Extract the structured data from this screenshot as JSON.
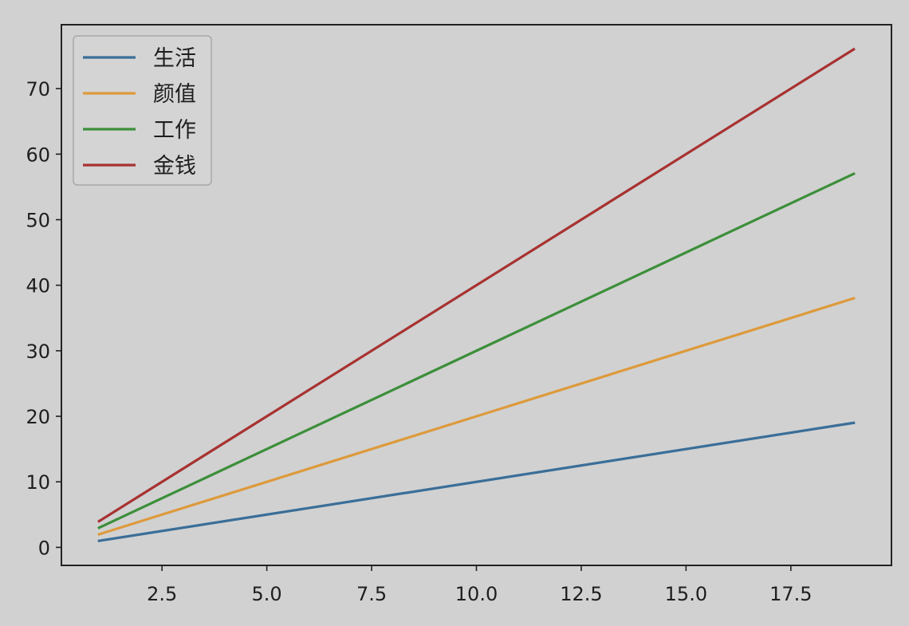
{
  "chart_data": {
    "type": "line",
    "x": [
      1,
      19
    ],
    "xlim": [
      0.1,
      19.9
    ],
    "ylim": [
      -2.75,
      79.75
    ],
    "xticks": [
      2.5,
      5.0,
      7.5,
      10.0,
      12.5,
      15.0,
      17.5
    ],
    "xtick_labels": [
      "2.5",
      "5.0",
      "7.5",
      "10.0",
      "12.5",
      "15.0",
      "17.5"
    ],
    "yticks": [
      0,
      10,
      20,
      30,
      40,
      50,
      60,
      70
    ],
    "ytick_labels": [
      "0",
      "10",
      "20",
      "30",
      "40",
      "50",
      "60",
      "70"
    ],
    "title": "",
    "xlabel": "",
    "ylabel": "",
    "grid": false,
    "legend_position": "top-left",
    "series": [
      {
        "name": "生活",
        "color": "#3a6e98",
        "y": [
          1,
          19
        ]
      },
      {
        "name": "颜值",
        "color": "#dd9a3c",
        "y": [
          2,
          38
        ]
      },
      {
        "name": "工作",
        "color": "#3c8f3a",
        "y": [
          3,
          57
        ]
      },
      {
        "name": "金钱",
        "color": "#a83232",
        "y": [
          4,
          76
        ]
      }
    ]
  }
}
